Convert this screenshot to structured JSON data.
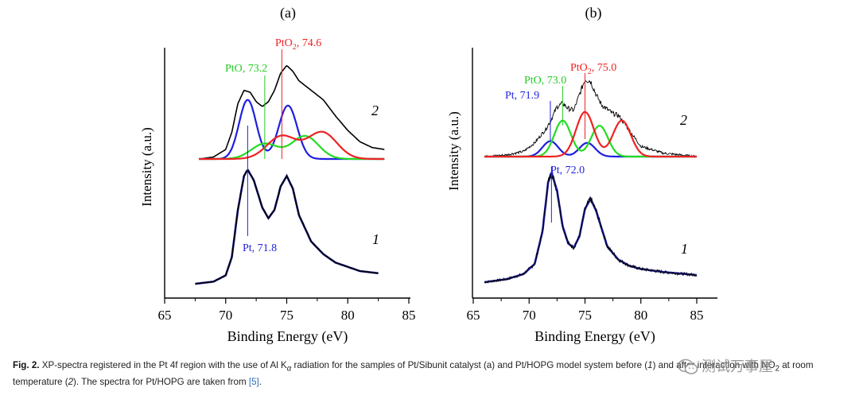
{
  "chart_data": [
    {
      "type": "line",
      "panel_label": "(a)",
      "xlabel": "Binding Energy (eV)",
      "ylabel": "Intensity (a.u.)",
      "xlim": [
        65,
        85
      ],
      "xticks": [
        65,
        70,
        75,
        80,
        85
      ],
      "tick_labels": [
        "65",
        "70",
        "75",
        "80",
        "85"
      ],
      "series": [
        {
          "name": "1",
          "label": "1",
          "color": "#000000",
          "fit_color": "#1a1aa6",
          "x": [
            67.5,
            69.0,
            70.0,
            70.5,
            71.0,
            71.5,
            71.8,
            72.3,
            73.0,
            73.5,
            74.0,
            74.5,
            75.0,
            75.5,
            76.0,
            77.0,
            78.0,
            79.0,
            80.0,
            81.0,
            82.5
          ],
          "y": [
            0.0,
            0.02,
            0.08,
            0.25,
            0.7,
            1.02,
            1.08,
            0.98,
            0.72,
            0.62,
            0.7,
            0.92,
            1.02,
            0.9,
            0.65,
            0.4,
            0.28,
            0.2,
            0.16,
            0.12,
            0.1
          ]
        },
        {
          "name": "2",
          "label": "2",
          "color": "#000000",
          "x": [
            67.8,
            69.0,
            70.0,
            70.5,
            71.0,
            71.5,
            72.0,
            72.5,
            73.0,
            73.5,
            74.0,
            74.5,
            75.0,
            75.5,
            76.0,
            77.0,
            78.0,
            79.0,
            80.0,
            81.0,
            82.0,
            83.0
          ],
          "y": [
            0.0,
            0.02,
            0.1,
            0.28,
            0.58,
            0.72,
            0.7,
            0.6,
            0.55,
            0.6,
            0.72,
            0.9,
            0.98,
            0.92,
            0.82,
            0.72,
            0.62,
            0.45,
            0.3,
            0.18,
            0.12,
            0.1
          ]
        },
        {
          "name": "Pt (fit)",
          "color": "#1f1fe0",
          "peaks": [
            {
              "center": 71.8,
              "height": 0.62,
              "width": 0.7
            },
            {
              "center": 75.1,
              "height": 0.56,
              "width": 0.75
            }
          ]
        },
        {
          "name": "PtO (fit)",
          "color": "#22dd22",
          "peaks": [
            {
              "center": 73.2,
              "height": 0.16,
              "width": 1.1
            },
            {
              "center": 76.5,
              "height": 0.24,
              "width": 1.1
            }
          ]
        },
        {
          "name": "PtO2 (fit)",
          "color": "#ee2222",
          "peaks": [
            {
              "center": 74.6,
              "height": 0.24,
              "width": 1.2
            },
            {
              "center": 77.9,
              "height": 0.28,
              "width": 1.2
            }
          ]
        }
      ],
      "annotations": [
        {
          "text_main": "PtO",
          "text_sub": "2",
          "text_rest": ", 74.6",
          "x": 74.6,
          "color": "#ee2222"
        },
        {
          "text": "PtO, 73.2",
          "x": 73.2,
          "color": "#22cc22"
        },
        {
          "text": "Pt, 71.8",
          "x": 71.8,
          "color": "#1f1fe0"
        }
      ]
    },
    {
      "type": "line",
      "panel_label": "(b)",
      "xlabel": "Binding Energy (eV)",
      "ylabel": "Intensity (a.u.)",
      "xlim": [
        65,
        85
      ],
      "xticks": [
        65,
        70,
        75,
        80,
        85
      ],
      "tick_labels": [
        "65",
        "70",
        "75",
        "80",
        "85"
      ],
      "series": [
        {
          "name": "1",
          "label": "1",
          "color": "#000000",
          "fit_color": "#1a1aa6",
          "x": [
            66.0,
            68.0,
            69.5,
            70.5,
            71.2,
            71.7,
            72.0,
            72.5,
            73.0,
            73.5,
            74.0,
            74.5,
            75.0,
            75.5,
            76.0,
            77.0,
            78.0,
            79.0,
            80.0,
            82.0,
            85.0
          ],
          "y": [
            0.0,
            0.03,
            0.08,
            0.18,
            0.5,
            0.98,
            1.08,
            0.9,
            0.55,
            0.38,
            0.34,
            0.45,
            0.72,
            0.82,
            0.7,
            0.35,
            0.22,
            0.16,
            0.13,
            0.1,
            0.07
          ]
        },
        {
          "name": "2",
          "label": "2",
          "color": "#000000",
          "x": [
            66.0,
            68.0,
            69.5,
            70.5,
            71.5,
            72.0,
            72.5,
            73.0,
            73.5,
            74.0,
            74.5,
            75.0,
            75.5,
            76.0,
            76.5,
            77.0,
            77.5,
            78.0,
            79.0,
            80.0,
            82.0,
            85.0
          ],
          "y": [
            0.0,
            0.02,
            0.06,
            0.16,
            0.32,
            0.44,
            0.58,
            0.62,
            0.56,
            0.54,
            0.72,
            0.9,
            0.88,
            0.72,
            0.6,
            0.55,
            0.5,
            0.48,
            0.3,
            0.12,
            0.04,
            0.0
          ]
        },
        {
          "name": "Pt (fit)",
          "color": "#1f1fe0",
          "peaks": [
            {
              "center": 71.9,
              "height": 0.18,
              "width": 0.7
            },
            {
              "center": 75.2,
              "height": 0.16,
              "width": 0.7
            }
          ]
        },
        {
          "name": "PtO (fit)",
          "color": "#22dd22",
          "peaks": [
            {
              "center": 73.0,
              "height": 0.42,
              "width": 0.75
            },
            {
              "center": 76.3,
              "height": 0.36,
              "width": 0.75
            }
          ]
        },
        {
          "name": "PtO2 (fit)",
          "color": "#ee2222",
          "peaks": [
            {
              "center": 75.0,
              "height": 0.52,
              "width": 0.8
            },
            {
              "center": 78.3,
              "height": 0.42,
              "width": 0.8
            }
          ]
        }
      ],
      "annotations": [
        {
          "text_main": "PtO",
          "text_sub": "2",
          "text_rest": ", 75.0",
          "x": 75.0,
          "color": "#ee2222"
        },
        {
          "text": "PtO, 73.0",
          "x": 73.0,
          "color": "#22cc22"
        },
        {
          "text": "Pt, 71.9",
          "x": 71.9,
          "color": "#1f1fe0"
        },
        {
          "text": "Pt, 72.0",
          "x": 72.0,
          "color": "#1f1fe0"
        }
      ]
    }
  ],
  "caption": {
    "fig_label": "Fig. 2.",
    "text_1": " XP-spectra registered in the Pt 4f region with the use of Al K",
    "text_alpha": "α",
    "text_2": " radiation for the samples of Pt/Sibunit catalyst (a) and Pt/HOPG model system before (",
    "num_1": "1",
    "text_3": ") and after interaction with NO",
    "sub_2": "2",
    "text_4": " at room temperature (",
    "num_2": "2",
    "text_5": "). The spectra for Pt/HOPG are taken from ",
    "ref": "[5]",
    "text_6": "."
  },
  "watermark": {
    "text": "测试万事屋",
    "icon": "wechat-icon"
  }
}
